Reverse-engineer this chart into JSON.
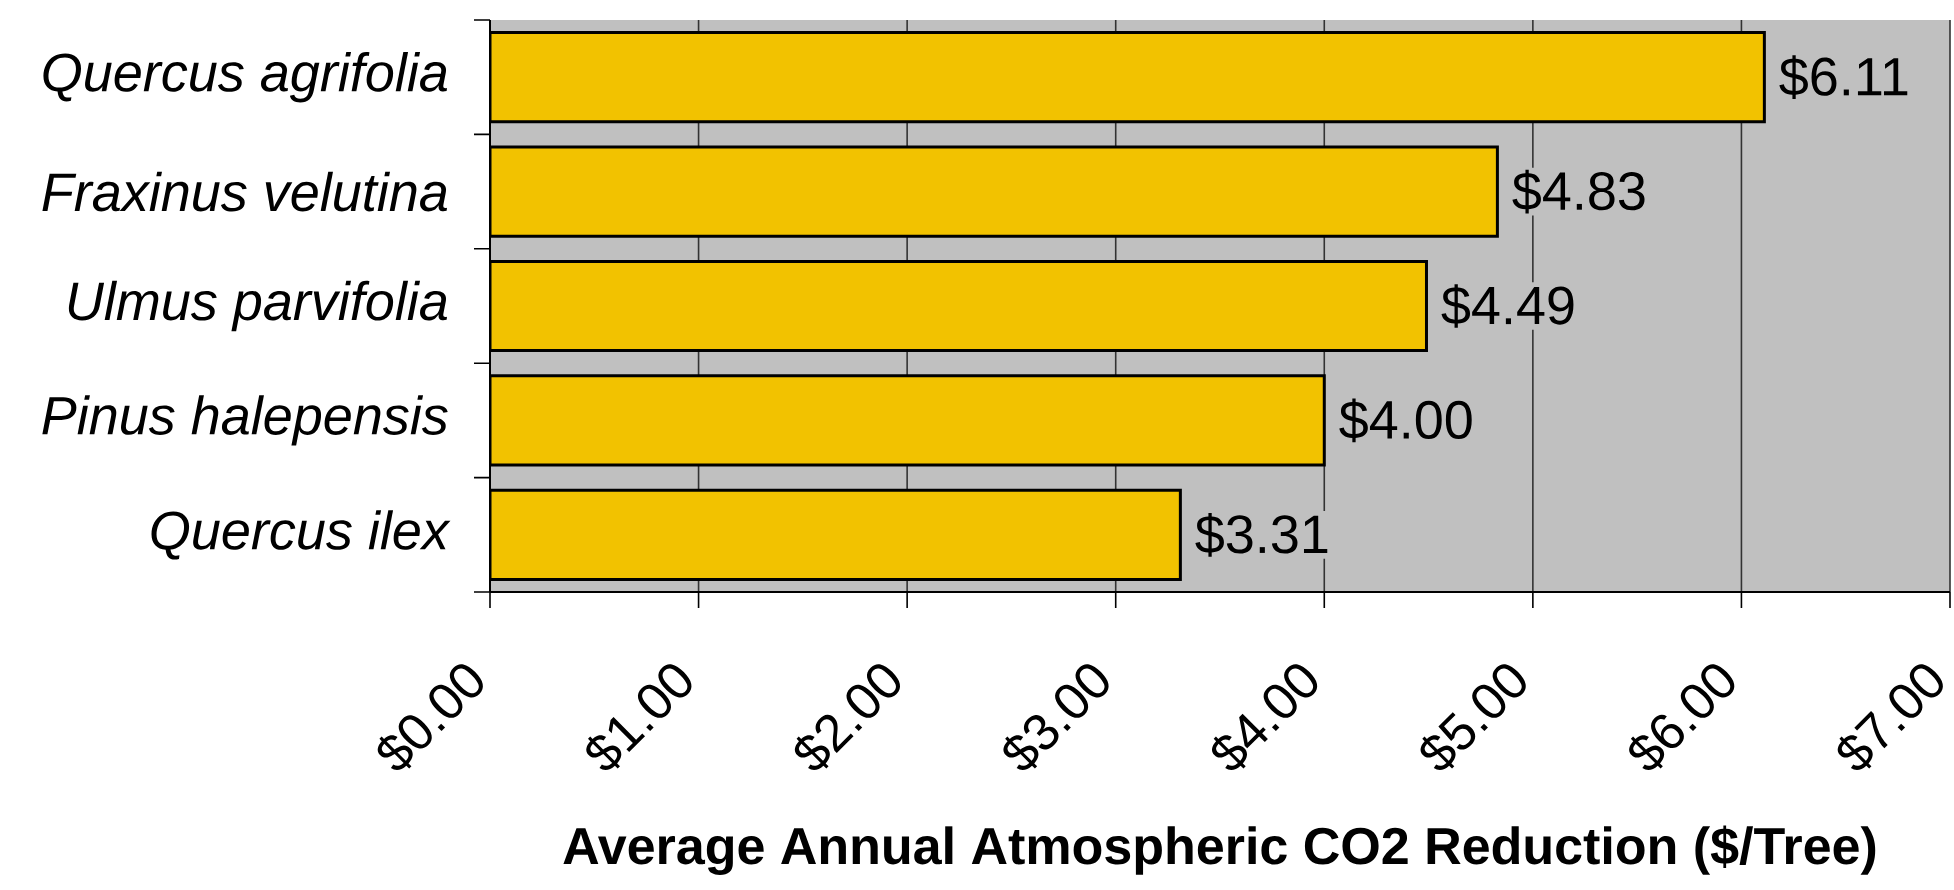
{
  "chart_data": {
    "type": "bar",
    "orientation": "horizontal",
    "categories": [
      "Quercus agrifolia",
      "Fraxinus velutina",
      "Ulmus parvifolia",
      "Pinus halepensis",
      "Quercus ilex"
    ],
    "values": [
      6.11,
      4.83,
      4.49,
      4.0,
      3.31
    ],
    "value_labels": [
      "$6.11",
      "$4.83",
      "$4.49",
      "$4.00",
      "$3.31"
    ],
    "color": "#f2c200",
    "xlabel": "Average Annual Atmospheric CO2 Reduction ($/Tree)",
    "xlim": [
      0,
      7
    ],
    "xticks": [
      {
        "value": 0,
        "label": "$0.00"
      },
      {
        "value": 1,
        "label": "$1.00"
      },
      {
        "value": 2,
        "label": "$2.00"
      },
      {
        "value": 3,
        "label": "$3.00"
      },
      {
        "value": 4,
        "label": "$4.00"
      },
      {
        "value": 5,
        "label": "$5.00"
      },
      {
        "value": 6,
        "label": "$6.00"
      },
      {
        "value": 7,
        "label": "$7.00"
      }
    ],
    "grid": "x"
  }
}
